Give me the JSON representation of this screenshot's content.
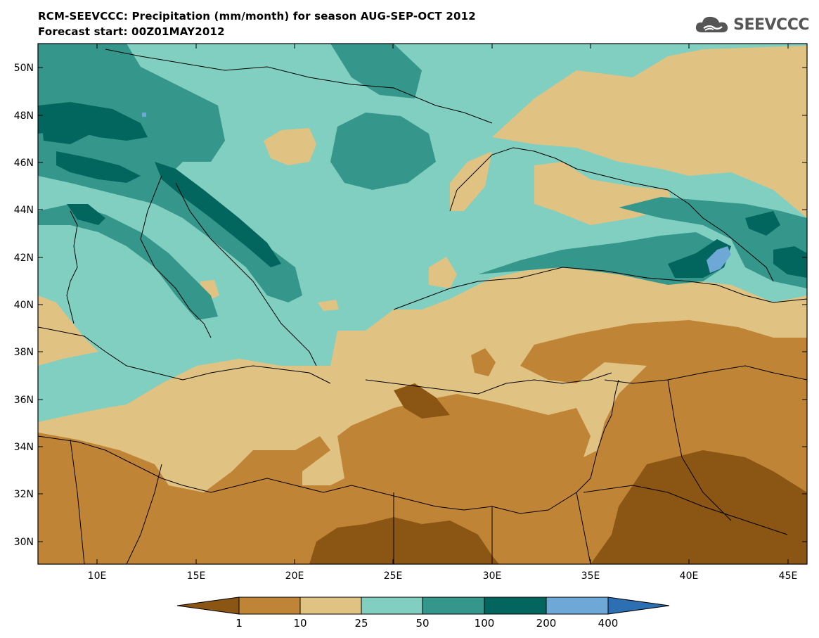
{
  "header": {
    "title": "RCM-SEEVCCC: Precipitation (mm/month) for season AUG-SEP-OCT 2012",
    "subtitle": "Forecast start: 00Z01MAY2012",
    "logo_text": "SEEVCCC"
  },
  "map": {
    "lon_range": [
      7,
      46
    ],
    "lat_range": [
      29,
      51
    ],
    "lat_ticks": [
      "50N",
      "48N",
      "46N",
      "44N",
      "42N",
      "40N",
      "38N",
      "36N",
      "34N",
      "32N",
      "30N"
    ],
    "lon_ticks": [
      "10E",
      "15E",
      "20E",
      "25E",
      "30E",
      "35E",
      "40E",
      "45E"
    ]
  },
  "colorbar": {
    "labels": [
      "1",
      "10",
      "25",
      "50",
      "100",
      "200",
      "400"
    ],
    "colors": [
      "#8b5513",
      "#c08436",
      "#e0c383",
      "#80cfc0",
      "#35968b",
      "#02665e",
      "#6ea8d6",
      "#2c6fb3"
    ],
    "bins": [
      "<1",
      "1-10",
      "10-25",
      "25-50",
      "50-100",
      "100-200",
      "200-400",
      ">400"
    ]
  }
}
